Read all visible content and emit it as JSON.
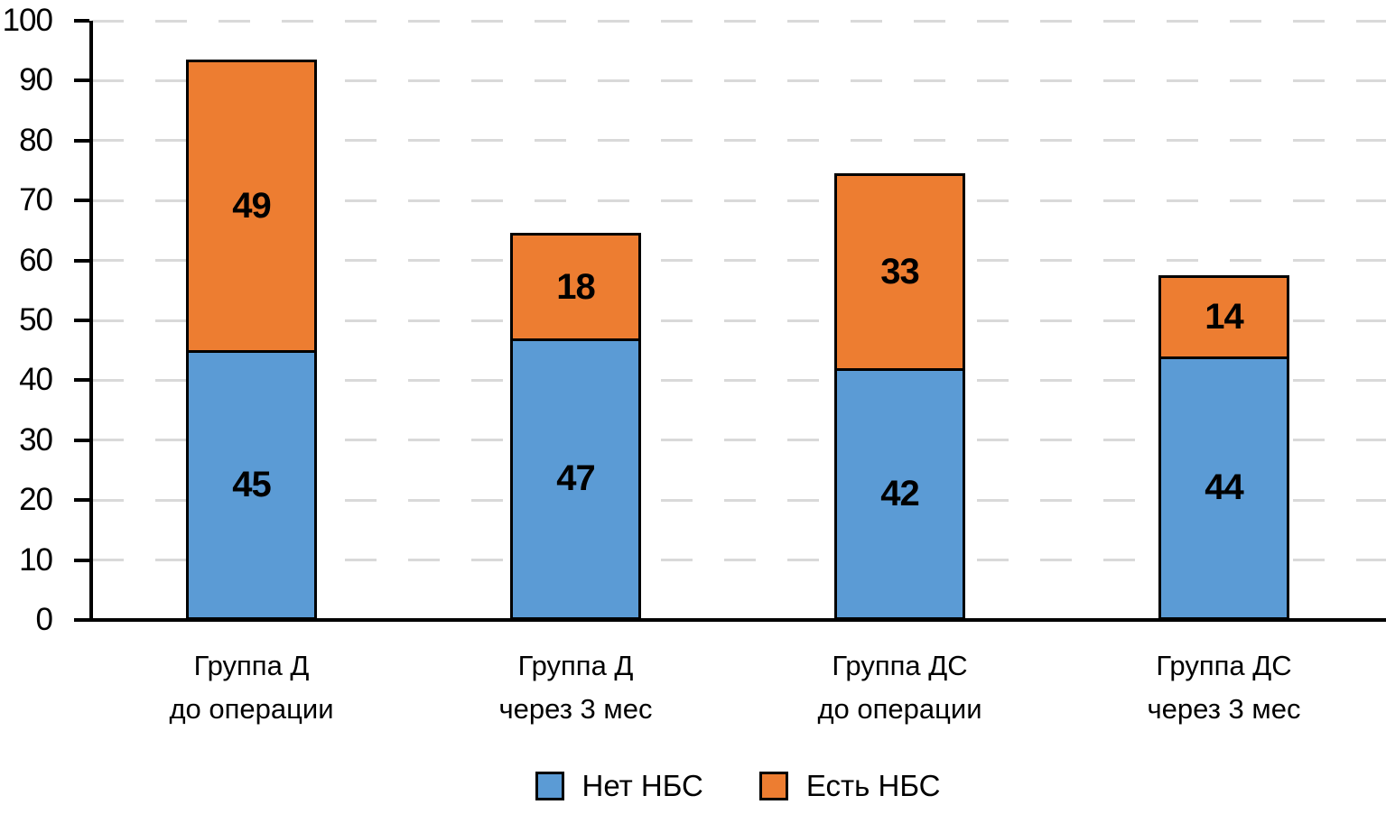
{
  "chart_data": {
    "type": "bar",
    "stacked": true,
    "title": "",
    "xlabel": "",
    "ylabel": "",
    "categories": [
      "Группа Д\nдо операции",
      "Группа Д\nчерез 3 мес",
      "Группа ДС\nдо операции",
      "Группа ДС\nчерез 3 мес"
    ],
    "series": [
      {
        "name": "Нет НБС",
        "color": "#5B9BD5",
        "values": [
          45,
          47,
          42,
          44
        ]
      },
      {
        "name": "Есть НБС",
        "color": "#ED7D31",
        "values": [
          49,
          18,
          33,
          14
        ]
      }
    ],
    "totals": [
      94,
      65,
      75,
      58
    ],
    "ylim": [
      0,
      100
    ],
    "yticks": [
      0,
      10,
      20,
      30,
      40,
      50,
      60,
      70,
      80,
      90,
      100
    ],
    "grid": "horizontal-dashed",
    "gridline_color": "#D9D9D9",
    "axis_color": "#000000",
    "bar_outline_color": "#000000",
    "data_labels": true,
    "legend_position": "bottom"
  }
}
